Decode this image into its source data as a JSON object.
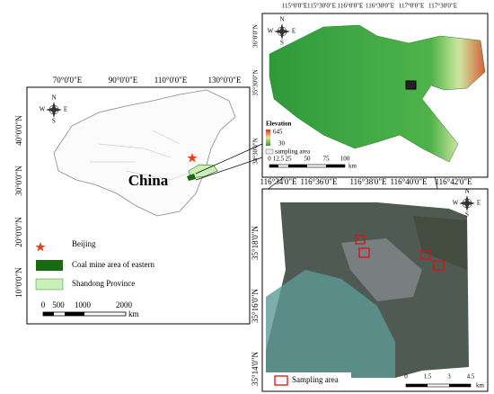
{
  "china_map": {
    "lon_labels": [
      "70°0'0\"E",
      "90°0'0\"E",
      "110°0'0\"E",
      "130°0'0\"E"
    ],
    "lat_labels": [
      "40°0'0\"N",
      "30°0'0\"N",
      "20°0'0\"N",
      "10°0'0\"N"
    ],
    "label": "China",
    "legend": [
      "Beijing",
      "Coal mine area of eastern",
      "Shandong Province"
    ],
    "scale": [
      "0",
      "500",
      "1000",
      "2000",
      "km"
    ]
  },
  "elevation_map": {
    "lon_labels": [
      "115°0'0\"E",
      "115°30'0\"E",
      "116°0'0\"E",
      "116°30'0\"E",
      "117°0'0\"E",
      "117°30'0\"E"
    ],
    "lat_labels": [
      "36°0'0\"N",
      "35°30'0\"N",
      "34°30'0\"N"
    ],
    "legend_title": "Elevation",
    "legend_high": "645",
    "legend_low": "30",
    "legend_area": "sampling area",
    "scale": [
      "0",
      "12.5",
      "25",
      "50",
      "75",
      "100",
      "km"
    ]
  },
  "site_map": {
    "lon_labels": [
      "116°34'0\"E",
      "116°36'0\"E",
      "116°38'0\"E",
      "116°40'0\"E",
      "116°42'0\"E"
    ],
    "lat_labels": [
      "35°18'0\"N",
      "35°16'0\"N",
      "35°14'0\"N"
    ],
    "legend": "Sampling area",
    "scale": [
      "0",
      "1.5",
      "3",
      "4.5",
      "km"
    ]
  },
  "compass": [
    "N",
    "S",
    "W",
    "E"
  ]
}
